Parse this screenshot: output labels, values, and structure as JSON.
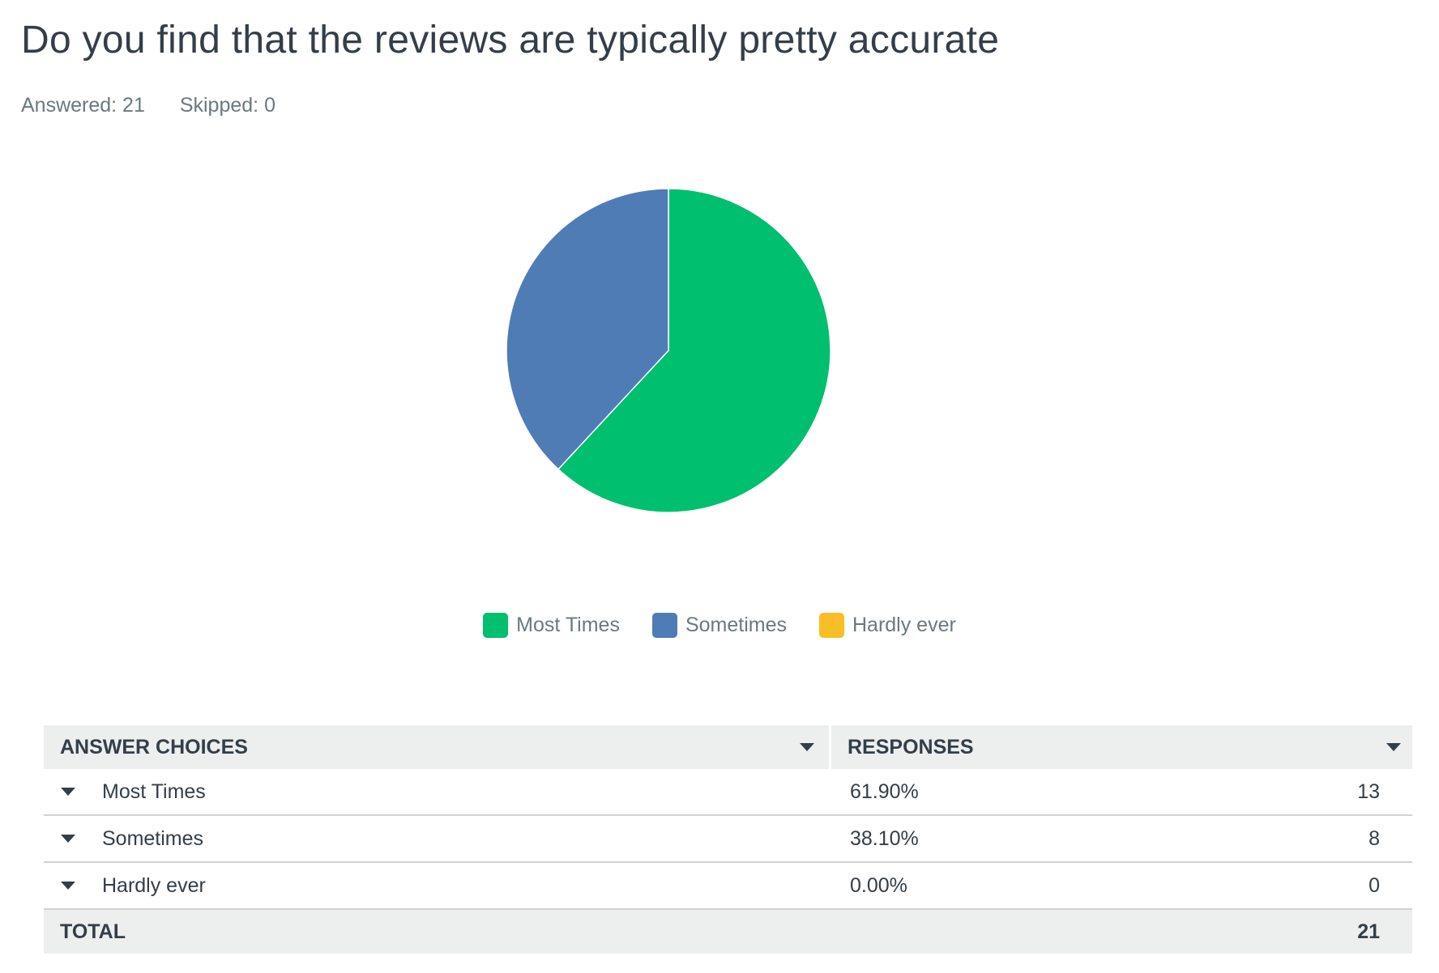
{
  "question": {
    "title": "Do you find that the reviews are typically pretty accurate",
    "answered_label": "Answered: 21",
    "skipped_label": "Skipped: 0"
  },
  "chart_data": {
    "type": "pie",
    "title": "",
    "categories": [
      "Most Times",
      "Sometimes",
      "Hardly ever"
    ],
    "values": [
      61.9,
      38.1,
      0.0
    ],
    "colors": [
      "#00bf6f",
      "#507cb6",
      "#f9be27"
    ],
    "legend_position": "bottom-center",
    "start_angle": "12 o'clock, clockwise"
  },
  "legend": {
    "items": [
      {
        "label": "Most Times",
        "color": "#00bf6f"
      },
      {
        "label": "Sometimes",
        "color": "#507cb6"
      },
      {
        "label": "Hardly ever",
        "color": "#f9be27"
      }
    ]
  },
  "table": {
    "header": {
      "choices": "ANSWER CHOICES",
      "responses": "RESPONSES"
    },
    "rows": [
      {
        "choice": "Most Times",
        "percent": "61.90%",
        "count": "13"
      },
      {
        "choice": "Sometimes",
        "percent": "38.10%",
        "count": "8"
      },
      {
        "choice": "Hardly ever",
        "percent": "0.00%",
        "count": "0"
      }
    ],
    "footer": {
      "label": "TOTAL",
      "value": "21"
    }
  }
}
